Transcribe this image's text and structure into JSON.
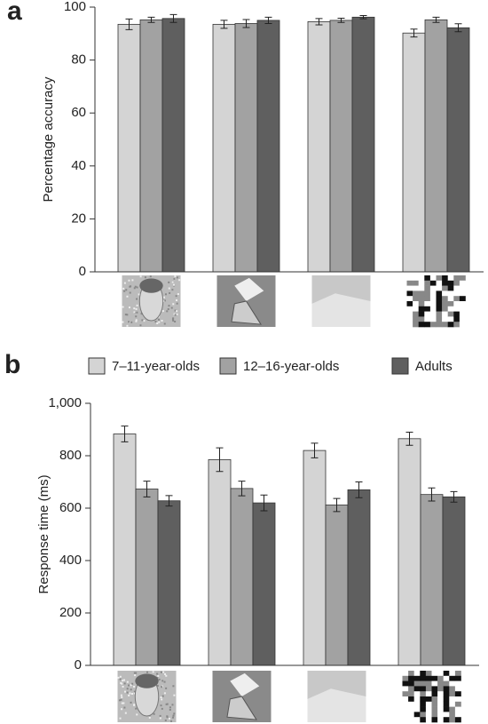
{
  "chart_data": [
    {
      "type": "bar",
      "label": "a",
      "ylabel": "Percentage accuracy",
      "categories": [
        null,
        null,
        null,
        null
      ],
      "series": [
        {
          "name": "7–11-year-olds",
          "color": "#d4d4d4",
          "values": [
            93.5,
            93.5,
            94.5,
            90.2
          ],
          "errors": [
            2,
            1.5,
            1.2,
            1.5
          ]
        },
        {
          "name": "12–16-year-olds",
          "color": "#a2a2a2",
          "values": [
            95.2,
            93.8,
            95,
            95.2
          ],
          "errors": [
            1,
            1.5,
            0.8,
            1
          ]
        },
        {
          "name": "Adults",
          "color": "#5f5f5f",
          "values": [
            95.7,
            95,
            96.2,
            92.2
          ],
          "errors": [
            1.5,
            1.2,
            0.6,
            1.5
          ]
        }
      ],
      "ylim": [
        0,
        100
      ],
      "yticks": [
        0,
        20,
        40,
        60,
        80,
        100
      ],
      "legend": false
    },
    {
      "type": "bar",
      "label": "b",
      "ylabel": "Response time (ms)",
      "categories": [
        null,
        null,
        null,
        null
      ],
      "series": [
        {
          "name": "7–11-year-olds",
          "color": "#d4d4d4",
          "values": [
            883,
            785,
            820,
            865
          ],
          "errors": [
            30,
            45,
            28,
            25
          ]
        },
        {
          "name": "12–16-year-olds",
          "color": "#a2a2a2",
          "values": [
            673,
            675,
            612,
            652
          ],
          "errors": [
            30,
            28,
            25,
            25
          ]
        },
        {
          "name": "Adults",
          "color": "#5f5f5f",
          "values": [
            628,
            620,
            670,
            643
          ],
          "errors": [
            20,
            30,
            30,
            20
          ]
        }
      ],
      "ylim": [
        0,
        1000
      ],
      "yticks": [
        0,
        200,
        400,
        600,
        800,
        {
          "value": 1000,
          "label": "1,000"
        }
      ],
      "legend": true
    }
  ]
}
